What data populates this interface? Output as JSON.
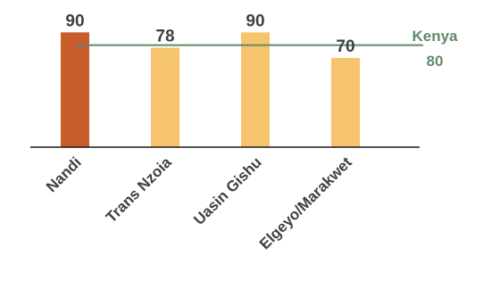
{
  "chart_data": {
    "type": "bar",
    "categories": [
      "Nandi",
      "Trans Nzoia",
      "Uasin Gishu",
      "Elgeyo/Marakwet"
    ],
    "values": [
      90,
      78,
      90,
      70
    ],
    "value_labels": [
      "90",
      "78",
      "90",
      "70"
    ],
    "bar_colors": [
      "#c95c2b",
      "#f6c46c",
      "#f6c46c",
      "#f6c46c"
    ],
    "reference_line": {
      "name": "Kenya",
      "value": 80,
      "value_label": "80",
      "color": "#5f8a6b"
    },
    "ylim": [
      0,
      100
    ],
    "grid": false,
    "legend": "none",
    "title": "",
    "xlabel": "",
    "ylabel": ""
  }
}
